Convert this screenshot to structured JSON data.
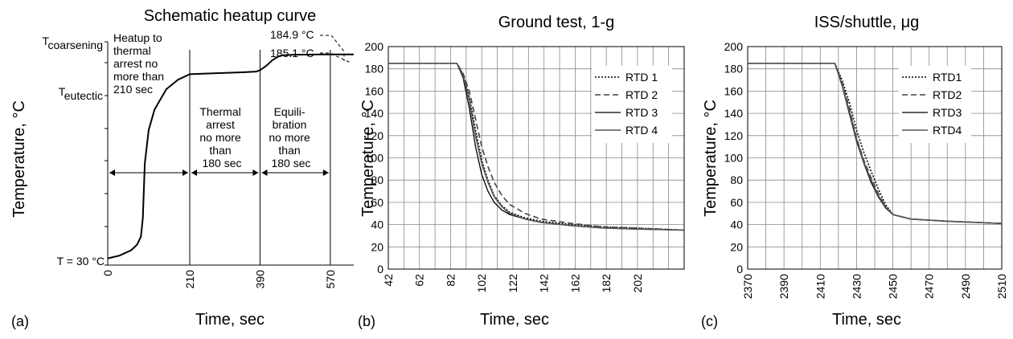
{
  "chart_data": [
    {
      "type": "line",
      "panel_label": "(a)",
      "title": "Schematic heatup curve",
      "xlabel": "Time, sec",
      "ylabel": "Temperature, °C",
      "xlim": [
        0,
        630
      ],
      "x_ticks": [
        "0",
        "210",
        "390",
        "570"
      ],
      "x_tick_values": [
        0,
        210,
        390,
        570
      ],
      "y_labels": [
        {
          "base": "T",
          "sub": "coarsening"
        },
        {
          "base": "T",
          "sub": "eutectic"
        },
        {
          "base": "T = 30 °C",
          "sub": ""
        }
      ],
      "y_values": {
        "coarsening": 185.1,
        "eutectic": 183,
        "start": 30
      },
      "series": [
        {
          "x": [
            0,
            30,
            60,
            75,
            85,
            90,
            95,
            105,
            120,
            150,
            180,
            210,
            250,
            300,
            350,
            380,
            390,
            405,
            420,
            430,
            440,
            450,
            470,
            500,
            540,
            570,
            600,
            630
          ],
          "y": [
            30,
            32,
            36,
            40,
            46,
            60,
            100,
            125,
            140,
            155,
            162,
            166,
            166.5,
            167,
            167.5,
            168,
            169,
            172,
            176,
            178,
            179.5,
            180,
            180.3,
            180.5,
            180.6,
            180.7,
            180.7,
            180.7
          ]
        }
      ],
      "annotations": [
        {
          "lines": [
            "Heatup to",
            "thermal",
            "arrest no",
            "more than",
            "210 sec"
          ]
        },
        {
          "lines": [
            "Thermal",
            "arrest",
            "no more",
            "than",
            "180 sec"
          ]
        },
        {
          "lines": [
            "Equili-",
            "bration",
            "no more",
            "than",
            "180 sec"
          ]
        },
        {
          "lines": [
            "184.9 °C"
          ]
        },
        {
          "lines": [
            "185.1 °C"
          ]
        }
      ],
      "phase_boundaries": [
        210,
        390,
        570
      ],
      "grid": false
    },
    {
      "type": "line",
      "panel_label": "(b)",
      "title": "Ground test, 1-g",
      "xlabel": "Time, sec",
      "ylabel": "Temperature, °C",
      "xlim": [
        42,
        232
      ],
      "ylim": [
        0,
        200
      ],
      "x_ticks": [
        "42",
        "62",
        "82",
        "102",
        "122",
        "142",
        "162",
        "182",
        "202"
      ],
      "x_tick_values": [
        42,
        62,
        82,
        102,
        122,
        142,
        162,
        182,
        202
      ],
      "y_ticks": [
        "0",
        "20",
        "40",
        "60",
        "80",
        "100",
        "120",
        "140",
        "160",
        "180",
        "200"
      ],
      "grid": true,
      "legend_position": "top-right",
      "series": [
        {
          "name": "RTD 1",
          "style": "dotted",
          "x": [
            42,
            86,
            90,
            94,
            98,
            102,
            106,
            110,
            115,
            120,
            130,
            140,
            160,
            180,
            200,
            232
          ],
          "y": [
            185,
            185,
            175,
            155,
            125,
            98,
            80,
            66,
            57,
            51,
            46,
            43,
            40,
            38,
            37,
            35
          ]
        },
        {
          "name": "RTD 2",
          "style": "dashed",
          "x": [
            42,
            86,
            90,
            94,
            98,
            102,
            106,
            110,
            115,
            120,
            130,
            140,
            160,
            180,
            200,
            232
          ],
          "y": [
            185,
            185,
            176,
            160,
            135,
            110,
            92,
            78,
            66,
            58,
            50,
            45,
            41,
            38,
            37,
            35
          ]
        },
        {
          "name": "RTD 3",
          "style": "solid",
          "x": [
            42,
            86,
            90,
            94,
            98,
            102,
            106,
            110,
            115,
            120,
            130,
            140,
            160,
            180,
            200,
            232
          ],
          "y": [
            185,
            185,
            172,
            145,
            110,
            85,
            70,
            60,
            53,
            49,
            45,
            42,
            39,
            37,
            36,
            35
          ]
        },
        {
          "name": "RTD 4",
          "style": "solid-gray",
          "x": [
            42,
            86,
            90,
            94,
            98,
            102,
            106,
            110,
            115,
            120,
            130,
            140,
            160,
            180,
            200,
            232
          ],
          "y": [
            185,
            185,
            174,
            152,
            120,
            95,
            78,
            65,
            56,
            50,
            45,
            42,
            39,
            37,
            36,
            35
          ]
        }
      ]
    },
    {
      "type": "line",
      "panel_label": "(c)",
      "title": "ISS/shuttle, μg",
      "xlabel": "Time, sec",
      "ylabel": "Temperature, °C",
      "xlim": [
        2370,
        2510
      ],
      "ylim": [
        0,
        200
      ],
      "x_ticks": [
        "2370",
        "2390",
        "2410",
        "2430",
        "2450",
        "2470",
        "2490",
        "2510"
      ],
      "x_tick_values": [
        2370,
        2390,
        2410,
        2430,
        2450,
        2470,
        2490,
        2510
      ],
      "y_ticks": [
        "0",
        "20",
        "40",
        "60",
        "80",
        "100",
        "120",
        "140",
        "160",
        "180",
        "200"
      ],
      "grid": true,
      "legend_position": "top-right",
      "series": [
        {
          "name": "RTD1",
          "style": "dotted",
          "x": [
            2370,
            2418,
            2422,
            2426,
            2430,
            2434,
            2438,
            2442,
            2446,
            2450,
            2460,
            2480,
            2510
          ],
          "y": [
            185,
            185,
            170,
            150,
            125,
            105,
            88,
            72,
            58,
            49,
            45,
            43,
            41
          ]
        },
        {
          "name": "RTD2",
          "style": "dashed",
          "x": [
            2370,
            2418,
            2422,
            2426,
            2430,
            2434,
            2438,
            2442,
            2446,
            2450,
            2460,
            2480,
            2510
          ],
          "y": [
            185,
            185,
            168,
            145,
            118,
            98,
            82,
            68,
            56,
            49,
            45,
            43,
            41
          ]
        },
        {
          "name": "RTD3",
          "style": "solid",
          "x": [
            2370,
            2418,
            2422,
            2426,
            2430,
            2434,
            2438,
            2442,
            2446,
            2450,
            2460,
            2480,
            2510
          ],
          "y": [
            185,
            185,
            165,
            140,
            115,
            95,
            78,
            65,
            55,
            49,
            45,
            43,
            41
          ]
        },
        {
          "name": "RTD4",
          "style": "solid-gray",
          "x": [
            2370,
            2418,
            2422,
            2426,
            2430,
            2434,
            2438,
            2442,
            2446,
            2450,
            2460,
            2480,
            2510
          ],
          "y": [
            185,
            185,
            166,
            142,
            117,
            96,
            80,
            66,
            56,
            49,
            45,
            43,
            41
          ]
        }
      ]
    }
  ]
}
